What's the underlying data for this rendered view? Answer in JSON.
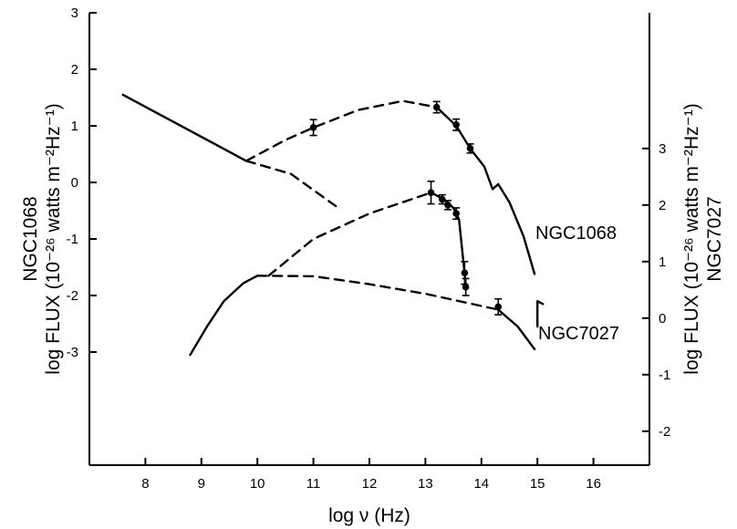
{
  "chart_data": {
    "type": "line",
    "xlabel": "log ν (Hz)",
    "xlim": [
      7,
      17
    ],
    "x_ticks": [
      "8",
      "9",
      "10",
      "11",
      "12",
      "13",
      "14",
      "15",
      "16"
    ],
    "left_axis": {
      "label_line1": "NGC1068",
      "label_line2": "log FLUX (10⁻²⁶ watts m⁻²Hz⁻¹)",
      "ylim": [
        -5,
        3
      ],
      "ticks": [
        "3",
        "2",
        "1",
        "0",
        "-1",
        "-2",
        "-3"
      ]
    },
    "right_axis": {
      "label_line1": "log FLUX (10⁻²⁶ watts m⁻²Hz⁻¹)",
      "label_line2": "NGC7027",
      "offset_from_left": 2.4,
      "ticks": [
        "3",
        "2",
        "1",
        "0",
        "-1",
        "-2"
      ]
    },
    "series": [
      {
        "name": "NGC1068",
        "curves": [
          {
            "style": "solid",
            "points": [
              [
                7.6,
                1.55
              ],
              [
                9.8,
                0.38
              ]
            ]
          },
          {
            "style": "dashed",
            "points": [
              [
                9.8,
                0.38
              ],
              [
                10.6,
                0.15
              ],
              [
                11.4,
                -0.42
              ]
            ]
          },
          {
            "style": "dashed",
            "points": [
              [
                9.8,
                0.38
              ],
              [
                10.5,
                0.75
              ],
              [
                11.0,
                0.97
              ],
              [
                11.8,
                1.28
              ],
              [
                12.6,
                1.44
              ],
              [
                13.2,
                1.33
              ]
            ]
          },
          {
            "style": "solid",
            "points": [
              [
                13.2,
                1.33
              ],
              [
                13.55,
                1.0
              ],
              [
                13.8,
                0.6
              ],
              [
                14.05,
                0.28
              ],
              [
                14.2,
                -0.12
              ],
              [
                14.3,
                -0.03
              ],
              [
                14.5,
                -0.35
              ],
              [
                14.75,
                -0.95
              ],
              [
                14.95,
                -1.62
              ]
            ]
          }
        ],
        "points": [
          {
            "x": 11.0,
            "y": 0.97,
            "err": 0.14
          },
          {
            "x": 13.2,
            "y": 1.33,
            "err": 0.1
          },
          {
            "x": 13.55,
            "y": 1.02,
            "err": 0.1
          },
          {
            "x": 13.8,
            "y": 0.6,
            "err": 0.08
          }
        ]
      },
      {
        "name": "NGC7027",
        "curves": [
          {
            "style": "dashed",
            "points": [
              [
                10.2,
                -1.65
              ],
              [
                11.0,
                -1.0
              ],
              [
                12.0,
                -0.55
              ],
              [
                13.1,
                -0.18
              ]
            ]
          },
          {
            "style": "solid",
            "points": [
              [
                13.1,
                -0.18
              ],
              [
                13.3,
                -0.28
              ],
              [
                13.5,
                -0.45
              ],
              [
                13.6,
                -0.65
              ],
              [
                13.72,
                -1.8
              ]
            ]
          },
          {
            "style": "dashed",
            "points": [
              [
                10.0,
                -1.65
              ],
              [
                11.0,
                -1.66
              ],
              [
                12.0,
                -1.8
              ],
              [
                13.0,
                -1.97
              ],
              [
                14.3,
                -2.25
              ]
            ]
          },
          {
            "style": "solid",
            "points": [
              [
                8.8,
                -3.05
              ],
              [
                9.1,
                -2.55
              ],
              [
                9.4,
                -2.1
              ],
              [
                9.75,
                -1.78
              ],
              [
                10.0,
                -1.65
              ]
            ]
          },
          {
            "style": "solid",
            "points": [
              [
                14.3,
                -2.25
              ],
              [
                14.65,
                -2.55
              ],
              [
                14.95,
                -2.95
              ]
            ]
          },
          {
            "style": "solid",
            "points": [
              [
                15.0,
                -2.55
              ],
              [
                15.0,
                -2.1
              ],
              [
                15.1,
                -2.15
              ]
            ]
          }
        ],
        "points": [
          {
            "x": 13.1,
            "y": -0.18,
            "err": 0.2
          },
          {
            "x": 13.3,
            "y": -0.3,
            "err": 0.08
          },
          {
            "x": 13.4,
            "y": -0.4,
            "err": 0.08
          },
          {
            "x": 13.55,
            "y": -0.55,
            "err": 0.1
          },
          {
            "x": 13.7,
            "y": -1.6,
            "err": 0.2
          },
          {
            "x": 13.72,
            "y": -1.85,
            "err": 0.15
          },
          {
            "x": 14.3,
            "y": -2.2,
            "err": 0.14
          }
        ]
      }
    ]
  }
}
